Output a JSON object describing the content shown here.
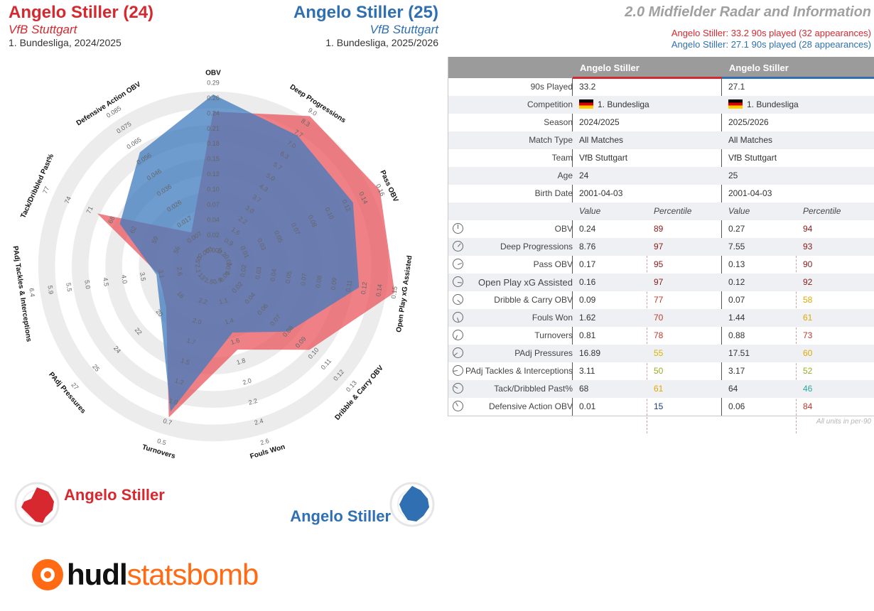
{
  "header": {
    "left": {
      "name": "Angelo Stiller (24)",
      "team": "VfB Stuttgart",
      "comp": "1. Bundesliga, 2024/2025"
    },
    "right": {
      "name": "Angelo Stiller (25)",
      "team": "VfB Stuttgart",
      "comp": "1. Bundesliga, 2025/2026"
    },
    "title": "2.0 Midfielder Radar and Information",
    "sub1": "Angelo Stiller: 33.2 90s played (32 appearances)",
    "sub2": "Angelo Stiller: 27.1 90s played (28 appearances)"
  },
  "colors": {
    "red": "#d7282f",
    "blue": "#2f6fb2",
    "redFill": "#e8555d",
    "blueFill": "#3f7bbf"
  },
  "chart_data": {
    "type": "radar",
    "axes": [
      {
        "label": "OBV",
        "ticks": [
          "-0.005",
          "0.02",
          "0.04",
          "0.07",
          "0.10",
          "0.12",
          "0.15",
          "0.18",
          "0.21",
          "0.24",
          "0.26",
          "0.29"
        ]
      },
      {
        "label": "Deep Progressions",
        "ticks": [
          "0.2",
          "0.9",
          "1.6",
          "2.2",
          "3.0",
          "3.7",
          "4.3",
          "5.0",
          "5.7",
          "6.3",
          "7.0",
          "7.7",
          "8.3",
          "9.0"
        ]
      },
      {
        "label": "Pass OBV",
        "ticks": [
          "-0.01",
          "0.01",
          "0.03",
          "0.05",
          "0.07",
          "0.08",
          "0.10",
          "0.12",
          "0.14",
          "0.16"
        ]
      },
      {
        "label": "Open Play xG Assisted",
        "ticks": [
          "0.01",
          "0.02",
          "0.03",
          "0.04",
          "0.05",
          "0.07",
          "0.08",
          "0.09",
          "0.11",
          "0.12",
          "0.14",
          "0.15"
        ]
      },
      {
        "label": "Dribble & Carry OBV",
        "ticks": [
          "0.01",
          "0.02",
          "0.04",
          "0.06",
          "0.07",
          "0.08",
          "0.09",
          "0.10",
          "0.11",
          "0.12",
          "0.13"
        ]
      },
      {
        "label": "Fouls Won",
        "ticks": [
          "0.9",
          "1.1",
          "1.4",
          "1.6",
          "1.8",
          "2.0",
          "2.2",
          "2.4",
          "2.6"
        ]
      },
      {
        "label": "Turnovers",
        "ticks": [
          "2.5",
          "2.2",
          "2.0",
          "1.7",
          "1.5",
          "1.2",
          "1.0",
          "0.7",
          "0.5"
        ]
      },
      {
        "label": "PAdj Pressures",
        "ticks": [
          "13",
          "18",
          "20",
          "22",
          "24",
          "25",
          "27"
        ]
      },
      {
        "label": "PAdj Tackles & Interceptions",
        "ticks": [
          "2.1",
          "2.6",
          "3.1",
          "3.5",
          "4.0",
          "4.5",
          "5.0",
          "5.5",
          "5.9",
          "6.4"
        ]
      },
      {
        "label": "Tack/Dribbled Past%",
        "ticks": [
          "50",
          "56",
          "59",
          "62",
          "68",
          "71",
          "74",
          "77"
        ]
      },
      {
        "label": "Defensive Action OBV",
        "ticks": [
          "-0.003",
          "0.007",
          "0.017",
          "0.026",
          "0.036",
          "0.046",
          "0.056",
          "0.065",
          "0.075",
          "0.085"
        ]
      }
    ],
    "series": [
      {
        "name": "Angelo Stiller (24)",
        "values": [
          0.24,
          8.76,
          0.17,
          0.16,
          0.09,
          1.62,
          0.81,
          16.89,
          3.11,
          68,
          0.01
        ]
      },
      {
        "name": "Angelo Stiller (25)",
        "values": [
          0.27,
          7.55,
          0.13,
          0.12,
          0.07,
          1.44,
          0.88,
          17.51,
          3.17,
          64,
          0.06
        ]
      }
    ]
  },
  "table": {
    "col_left": "Angelo Stiller",
    "col_right": "Angelo Stiller",
    "info_rows": [
      {
        "label": "90s Played",
        "left": "33.2",
        "right": "27.1"
      },
      {
        "label": "Competition",
        "left": "1. Bundesliga",
        "right": "1. Bundesliga"
      },
      {
        "label": "Season",
        "left": "2024/2025",
        "right": "2025/2026"
      },
      {
        "label": "Match Type",
        "left": "All Matches",
        "right": "All Matches"
      },
      {
        "label": "Team",
        "left": "VfB Stuttgart",
        "right": "VfB Stuttgart"
      },
      {
        "label": "Age",
        "left": "24",
        "right": "25"
      },
      {
        "label": "Birth Date",
        "left": "2001-04-03",
        "right": "2001-04-03"
      }
    ],
    "sub_header": {
      "value": "Value",
      "percentile": "Percentile"
    },
    "metric_rows": [
      {
        "label": "OBV",
        "v1": "0.24",
        "p1": "89",
        "v2": "0.27",
        "p2": "94"
      },
      {
        "label": "Deep Progressions",
        "v1": "8.76",
        "p1": "97",
        "v2": "7.55",
        "p2": "93"
      },
      {
        "label": "Pass OBV",
        "v1": "0.17",
        "p1": "95",
        "v2": "0.13",
        "p2": "90"
      },
      {
        "label": "Open Play xG Assisted",
        "v1": "0.16",
        "p1": "97",
        "v2": "0.12",
        "p2": "92"
      },
      {
        "label": "Dribble & Carry OBV",
        "v1": "0.09",
        "p1": "77",
        "v2": "0.07",
        "p2": "58"
      },
      {
        "label": "Fouls Won",
        "v1": "1.62",
        "p1": "70",
        "v2": "1.44",
        "p2": "61"
      },
      {
        "label": "Turnovers",
        "v1": "0.81",
        "p1": "78",
        "v2": "0.88",
        "p2": "73"
      },
      {
        "label": "PAdj Pressures",
        "v1": "16.89",
        "p1": "55",
        "v2": "17.51",
        "p2": "60"
      },
      {
        "label": "PAdj Tackles & Interceptions",
        "v1": "3.11",
        "p1": "50",
        "v2": "3.17",
        "p2": "52"
      },
      {
        "label": "Tack/Dribbled Past%",
        "v1": "68",
        "p1": "61",
        "v2": "64",
        "p2": "46"
      },
      {
        "label": "Defensive Action OBV",
        "v1": "0.01",
        "p1": "15",
        "v2": "0.06",
        "p2": "84"
      }
    ],
    "units_note": "All units in per-90"
  },
  "legend": {
    "left": "Angelo Stiller",
    "right": "Angelo Stiller"
  },
  "logo": {
    "part1": "hudl",
    "part2": "statsbomb"
  }
}
